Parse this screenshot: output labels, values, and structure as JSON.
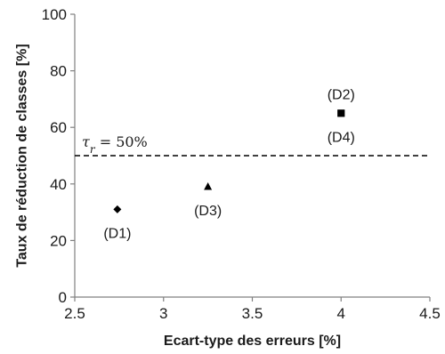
{
  "chart_data": {
    "type": "scatter",
    "title": "",
    "xlabel": "Ecart-type des erreurs [%]",
    "ylabel": "Taux de réduction de classes [%]",
    "xlim": [
      2.5,
      4.5
    ],
    "ylim": [
      0,
      100
    ],
    "x_ticks": [
      "2.5",
      "3",
      "3.5",
      "4",
      "4.5"
    ],
    "y_ticks": [
      "0",
      "20",
      "40",
      "60",
      "80",
      "100"
    ],
    "grid": false,
    "legend": "none",
    "points": [
      {
        "label": "(D1)",
        "x": 2.74,
        "y": 31,
        "marker": "diamond",
        "label_pos": "below"
      },
      {
        "label": "(D3)",
        "x": 3.25,
        "y": 39,
        "marker": "triangle",
        "label_pos": "below"
      },
      {
        "label": "(D2)",
        "x": 4.0,
        "y": 65,
        "marker": "square",
        "label_pos": "above"
      },
      {
        "label": "(D4)",
        "x": 4.0,
        "y": 65,
        "marker": "square",
        "label_pos": "below"
      }
    ],
    "threshold": {
      "y": 50,
      "style": "dashed",
      "label": {
        "symbol": "τ",
        "subscript": "r",
        "text": " = 50%"
      }
    },
    "colors": {
      "marker": "#000000",
      "axis": "#808080",
      "text": "#1a1a1a"
    }
  }
}
